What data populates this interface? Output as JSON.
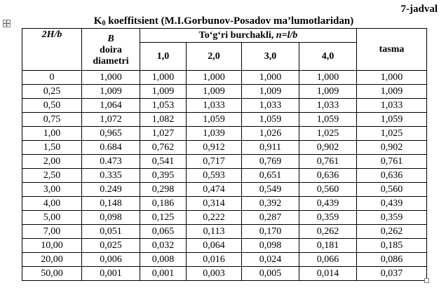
{
  "table_label": "7-jadval",
  "title": {
    "k": "K",
    "k_sub": "0",
    "text": " koeffitsient (M.I.Gorbunov-Posadov ma’lumotlaridan)"
  },
  "headers": {
    "col0": "2H/b",
    "col1_top": "B",
    "col1_mid": "doira",
    "col1_bot": "diametri",
    "group_text": "To‘g‘ri burchakli, ",
    "group_formula": "n=l/b",
    "sub": [
      "1,0",
      "2,0",
      "3,0",
      "4,0"
    ],
    "last": "tasma"
  },
  "rows": [
    [
      "0",
      "1,000",
      "1,000",
      "1,000",
      "1,000",
      "1,000",
      "1,000"
    ],
    [
      "0,25",
      "1,009",
      "1,009",
      "1,009",
      "1,009",
      "1,009",
      "1,009"
    ],
    [
      "0,50",
      "1,064",
      "1,053",
      "1,033",
      "1,033",
      "1,033",
      "1,033"
    ],
    [
      "0,75",
      "1,072",
      "1,082",
      "1,059",
      "1,059",
      "1,059",
      "1,059"
    ],
    [
      "1,00",
      "0,965",
      "1,027",
      "1,039",
      "1,026",
      "1,025",
      "1,025"
    ],
    [
      "1,50",
      "0.684",
      "0,762",
      "0,912",
      "0,911",
      "0,902",
      "0,902"
    ],
    [
      "2,00",
      "0.473",
      "0,541",
      "0,717",
      "0,769",
      "0,761",
      "0,761"
    ],
    [
      "2,50",
      "0.335",
      "0,395",
      "0,593",
      "0,651",
      "0,636",
      "0,636"
    ],
    [
      "3,00",
      "0.249",
      "0,298",
      "0,474",
      "0,549",
      "0,560",
      "0,560"
    ],
    [
      "4,00",
      "0,148",
      "0,186",
      "0,314",
      "0,392",
      "0,439",
      "0,439"
    ],
    [
      "5,00",
      "0,098",
      "0,125",
      "0,222",
      "0,287",
      "0,359",
      "0,359"
    ],
    [
      "7,00",
      "0,051",
      "0,065",
      "0,113",
      "0,170",
      "0,262",
      "0,262"
    ],
    [
      "10,00",
      "0,025",
      "0,032",
      "0,064",
      "0,098",
      "0,181",
      "0,185"
    ],
    [
      "20,00",
      "0,006",
      "0,008",
      "0,016",
      "0,024",
      "0,066",
      "0,086"
    ],
    [
      "50,00",
      "0,001",
      "0,001",
      "0,003",
      "0,005",
      "0,014",
      "0,037"
    ]
  ]
}
